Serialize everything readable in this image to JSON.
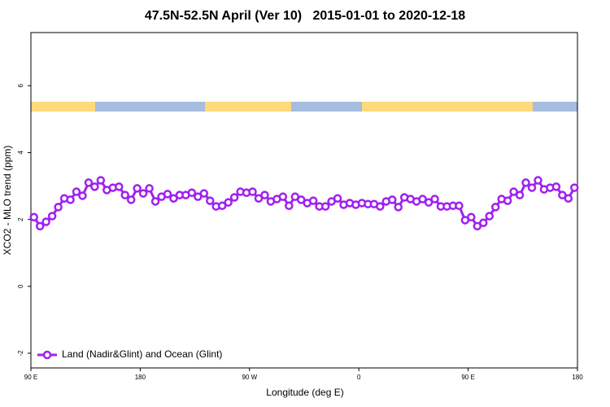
{
  "chart_data": {
    "type": "line",
    "title": "47.5N-52.5N April (Ver 10)   2015-01-01 to 2020-12-18",
    "xlabel": "Longitude (deg E)",
    "ylabel": "XCO2 - MLO trend (ppm)",
    "xlim": [
      90,
      540
    ],
    "ylim": [
      -2.44,
      7.59
    ],
    "xticks": [
      {
        "value": 90,
        "label": "90 E"
      },
      180,
      {
        "value": 270,
        "label": "90 W"
      },
      {
        "value": 360,
        "label": "0"
      },
      {
        "value": 450,
        "label": "90 E"
      },
      {
        "value": 540,
        "label": "180"
      }
    ],
    "yticks": [
      -2,
      0,
      2,
      4,
      6
    ],
    "x": [
      92.5,
      97.5,
      102.5,
      107.5,
      112.5,
      117.5,
      122.5,
      127.5,
      132.5,
      137.5,
      142.5,
      147.5,
      152.5,
      157.5,
      162.5,
      167.5,
      172.5,
      177.5,
      182.5,
      187.5,
      192.5,
      197.5,
      202.5,
      207.5,
      212.5,
      217.5,
      222.5,
      227.5,
      232.5,
      237.5,
      242.5,
      247.5,
      252.5,
      257.5,
      262.5,
      267.5,
      272.5,
      277.5,
      282.5,
      287.5,
      292.5,
      297.5,
      302.5,
      307.5,
      312.5,
      317.5,
      322.5,
      327.5,
      332.5,
      337.5,
      342.5,
      347.5,
      352.5,
      357.5,
      362.5,
      367.5,
      372.5,
      377.5,
      382.5,
      387.5,
      392.5,
      397.5,
      402.5,
      407.5,
      412.5,
      417.5,
      422.5,
      427.5,
      432.5,
      437.5,
      442.5,
      447.5,
      452.5,
      457.5,
      462.5,
      467.5,
      472.5,
      477.5,
      482.5,
      487.5,
      492.5,
      497.5,
      502.5,
      507.5,
      512.5,
      517.5,
      522.5,
      527.5,
      532.5,
      537.5
    ],
    "series": [
      {
        "name": "Land (Nadir&Glint) and Ocean (Glint)",
        "color": "#a020f0",
        "values": [
          2.07,
          1.8,
          1.93,
          2.1,
          2.37,
          2.63,
          2.59,
          2.83,
          2.71,
          3.1,
          2.98,
          3.17,
          2.88,
          2.95,
          2.98,
          2.73,
          2.59,
          2.93,
          2.78,
          2.93,
          2.54,
          2.68,
          2.76,
          2.63,
          2.73,
          2.73,
          2.8,
          2.68,
          2.78,
          2.56,
          2.39,
          2.41,
          2.51,
          2.66,
          2.83,
          2.8,
          2.83,
          2.63,
          2.73,
          2.54,
          2.61,
          2.68,
          2.41,
          2.68,
          2.59,
          2.49,
          2.56,
          2.39,
          2.39,
          2.54,
          2.63,
          2.44,
          2.49,
          2.44,
          2.49,
          2.46,
          2.46,
          2.39,
          2.54,
          2.59,
          2.37,
          2.66,
          2.61,
          2.54,
          2.61,
          2.51,
          2.61,
          2.39,
          2.39,
          2.41,
          2.41,
          1.98,
          2.07,
          1.8,
          1.9,
          2.1,
          2.37,
          2.61,
          2.56,
          2.83,
          2.73,
          3.1,
          2.95,
          3.17,
          2.9,
          2.95,
          2.98,
          2.73,
          2.63,
          2.95
        ]
      }
    ],
    "legend": "bottom-left"
  }
}
